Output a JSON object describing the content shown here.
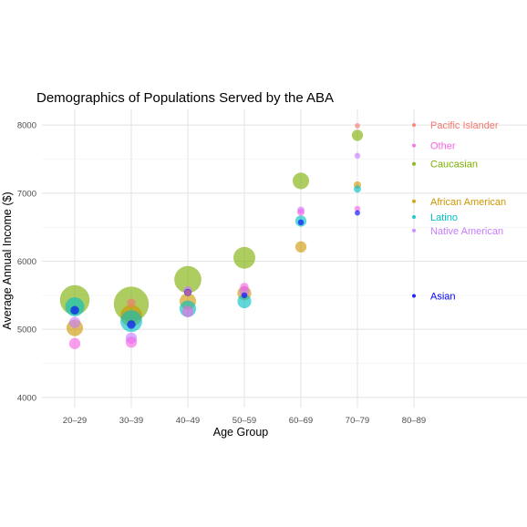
{
  "chart_data": {
    "type": "scatter",
    "title": "Demographics of Populations Served by the ABA",
    "xlabel": "Age Group",
    "ylabel": "Average Annual Income ($)",
    "categories": [
      "20–29",
      "30–39",
      "40–49",
      "50–59",
      "60–69",
      "70–79",
      "80–89"
    ],
    "ylim": [
      3850,
      8230
    ],
    "yticks": [
      4000,
      5000,
      6000,
      7000,
      8000
    ],
    "grid": true,
    "legend_position": "right",
    "series": [
      {
        "name": "Caucasian",
        "color": "#7CAE00",
        "points": [
          {
            "x": "20–29",
            "y": 5430,
            "size": 10
          },
          {
            "x": "30–39",
            "y": 5370,
            "size": 12
          },
          {
            "x": "40–49",
            "y": 5730,
            "size": 9
          },
          {
            "x": "50–59",
            "y": 6050,
            "size": 7
          },
          {
            "x": "60–69",
            "y": 7180,
            "size": 5
          },
          {
            "x": "70–79",
            "y": 7850,
            "size": 3
          }
        ]
      },
      {
        "name": "African American",
        "color": "#CD9600",
        "points": [
          {
            "x": "20–29",
            "y": 5020,
            "size": 5
          },
          {
            "x": "30–39",
            "y": 5200,
            "size": 7
          },
          {
            "x": "40–49",
            "y": 5410,
            "size": 5
          },
          {
            "x": "50–59",
            "y": 5530,
            "size": 4
          },
          {
            "x": "60–69",
            "y": 6210,
            "size": 3
          },
          {
            "x": "70–79",
            "y": 7120,
            "size": 1.5
          }
        ]
      },
      {
        "name": "Latino",
        "color": "#00BFC4",
        "points": [
          {
            "x": "20–29",
            "y": 5330,
            "size": 6
          },
          {
            "x": "30–39",
            "y": 5120,
            "size": 7
          },
          {
            "x": "40–49",
            "y": 5300,
            "size": 5
          },
          {
            "x": "50–59",
            "y": 5410,
            "size": 4
          },
          {
            "x": "60–69",
            "y": 6590,
            "size": 3
          },
          {
            "x": "70–79",
            "y": 7060,
            "size": 1.5
          }
        ]
      },
      {
        "name": "Native American",
        "color": "#C77CFF",
        "points": [
          {
            "x": "20–29",
            "y": 5100,
            "size": 3
          },
          {
            "x": "30–39",
            "y": 4870,
            "size": 3
          },
          {
            "x": "40–49",
            "y": 5570,
            "size": 2
          },
          {
            "x": "50–59",
            "y": 5560,
            "size": 2.5
          },
          {
            "x": "60–69",
            "y": 6750,
            "size": 1.5
          },
          {
            "x": "70–79",
            "y": 7550,
            "size": 1
          }
        ]
      },
      {
        "name": "Other",
        "color": "#F564E3",
        "points": [
          {
            "x": "20–29",
            "y": 4790,
            "size": 3
          },
          {
            "x": "30–39",
            "y": 4810,
            "size": 3
          },
          {
            "x": "40–49",
            "y": 5260,
            "size": 3
          },
          {
            "x": "50–59",
            "y": 5620,
            "size": 2
          },
          {
            "x": "60–69",
            "y": 6720,
            "size": 1.5
          },
          {
            "x": "70–79",
            "y": 6770,
            "size": 1
          }
        ]
      },
      {
        "name": "Asian",
        "color": "#0000FF",
        "points": [
          {
            "x": "20–29",
            "y": 5280,
            "size": 2
          },
          {
            "x": "30–39",
            "y": 5070,
            "size": 2
          },
          {
            "x": "40–49",
            "y": 5540,
            "size": 1.5
          },
          {
            "x": "50–59",
            "y": 5500,
            "size": 1
          },
          {
            "x": "60–69",
            "y": 6570,
            "size": 1
          },
          {
            "x": "70–79",
            "y": 6710,
            "size": 0.8
          }
        ]
      },
      {
        "name": "Pacific Islander",
        "color": "#F8766D",
        "points": [
          {
            "x": "30–39",
            "y": 5390,
            "size": 2
          },
          {
            "x": "40–49",
            "y": 5540,
            "size": 1
          },
          {
            "x": "70–79",
            "y": 7990,
            "size": 0.8
          }
        ]
      }
    ],
    "legend": [
      {
        "name": "Pacific Islander",
        "color": "#F8766D",
        "y": 8000
      },
      {
        "name": "Other",
        "color": "#F564E3",
        "y": 7700
      },
      {
        "name": "Caucasian",
        "color": "#7CAE00",
        "y": 7430
      },
      {
        "name": "African American",
        "color": "#CD9600",
        "y": 6880
      },
      {
        "name": "Latino",
        "color": "#00BFC4",
        "y": 6650
      },
      {
        "name": "Native American",
        "color": "#C77CFF",
        "y": 6450
      },
      {
        "name": "Asian",
        "color": "#0000FF",
        "y": 5490
      }
    ],
    "legend_x": "80–89"
  }
}
